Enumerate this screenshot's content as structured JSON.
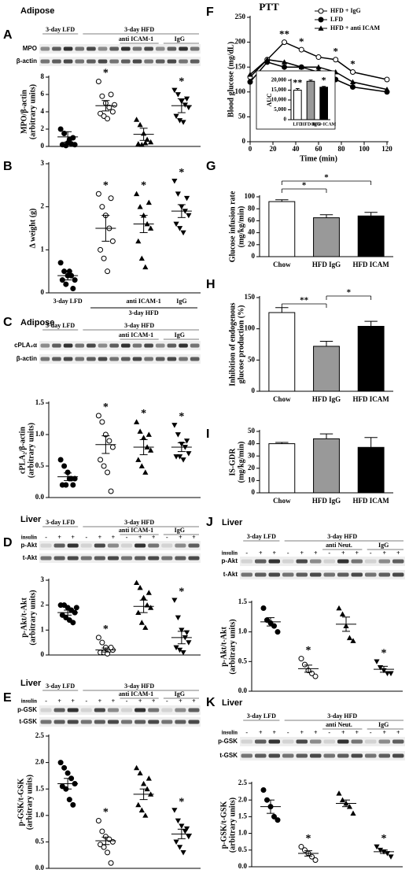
{
  "chart_data": [
    {
      "type": "dotplot",
      "panel_label": "A",
      "tissue": "Adipose",
      "color": "#000000",
      "blot": {
        "top_labels": [
          "3-day LFD",
          "3-day HFD"
        ],
        "sub_labels": [
          "anti ICAM-1",
          "IgG"
        ],
        "row_labels": [
          "MPO",
          "β-actin"
        ]
      },
      "ylabel": [
        "MPO/β-actin",
        "(arbitrary units)"
      ],
      "ylim": [
        0,
        8
      ],
      "yticks": [
        0,
        2,
        4,
        6,
        8
      ],
      "groups": [
        {
          "marker": "circle",
          "values": [
            2.0,
            1.5,
            0.4,
            0.3,
            0.2,
            0.2,
            0.1,
            0.8,
            1.0
          ],
          "mean": 1.1,
          "sem": 0.6
        },
        {
          "marker": "open-circle",
          "values": [
            7.5,
            5.8,
            5.0,
            4.5,
            4.0,
            3.8,
            3.5,
            3.2,
            6.0,
            4.8
          ],
          "mean": 4.7,
          "sem": 0.6,
          "annotation": "*"
        },
        {
          "marker": "triangle",
          "values": [
            3.1,
            2.5,
            1.5,
            0.8,
            0.5,
            0.3,
            0.2,
            0.4
          ],
          "mean": 1.4,
          "sem": 0.7
        },
        {
          "marker": "triangle-down",
          "values": [
            6.5,
            6.0,
            5.2,
            4.8,
            4.5,
            3.5,
            3.0,
            2.8,
            5.5
          ],
          "mean": 4.7,
          "sem": 0.8,
          "annotation": "*"
        }
      ]
    },
    {
      "type": "dotplot",
      "panel_label": "B",
      "color": "#000000",
      "ylabel": [
        "Δ weight (g)"
      ],
      "ylim": [
        0,
        3
      ],
      "yticks": [
        0,
        1,
        2,
        3
      ],
      "categories": [
        "3-day LFD",
        null,
        "anti ICAM-1",
        "IgG"
      ],
      "category_group": "3-day HFD",
      "groups": [
        {
          "marker": "circle",
          "values": [
            0.7,
            0.5,
            0.4,
            0.4,
            0.3,
            0.3,
            0.2,
            0.5,
            0.1
          ],
          "mean": 0.4,
          "sem": 0.1
        },
        {
          "marker": "open-circle",
          "values": [
            2.3,
            2.0,
            1.8,
            1.5,
            1.2,
            1.0,
            0.8,
            0.5,
            2.2
          ],
          "mean": 1.5,
          "sem": 0.3,
          "annotation": "*"
        },
        {
          "marker": "triangle",
          "values": [
            2.3,
            2.0,
            1.8,
            1.6,
            1.5,
            1.2,
            0.8,
            0.6,
            2.1
          ],
          "mean": 1.6,
          "sem": 0.2,
          "annotation": "*"
        },
        {
          "marker": "triangle-down",
          "values": [
            2.6,
            2.3,
            2.0,
            1.9,
            1.8,
            1.6,
            1.5,
            1.4,
            2.2
          ],
          "mean": 1.9,
          "sem": 0.15,
          "annotation": "*"
        }
      ]
    },
    {
      "type": "dotplot",
      "panel_label": "C",
      "tissue": "Adipose",
      "color": "#000000",
      "blot": {
        "top_labels": [
          "3-day LFD",
          "3-day HFD"
        ],
        "sub_labels": [
          "anti ICAM-1",
          "IgG"
        ],
        "row_labels": [
          "cPLA₂α",
          "β-actin"
        ]
      },
      "ylabel": [
        "cPLA₂/β-actin",
        "(arbitrary units)"
      ],
      "ylim": [
        0,
        1.5
      ],
      "yticks": [
        {
          "value": 0,
          "label": "0.0"
        },
        0.5,
        {
          "value": 1,
          "label": "1.0"
        },
        1.5
      ],
      "groups": [
        {
          "marker": "circle",
          "values": [
            0.6,
            0.5,
            0.4,
            0.3,
            0.3,
            0.2,
            0.2,
            0.3,
            0.2
          ],
          "mean": 0.33,
          "sem": 0.06
        },
        {
          "marker": "open-circle",
          "values": [
            1.3,
            1.2,
            1.0,
            0.9,
            0.8,
            0.6,
            0.5,
            0.4,
            0.1
          ],
          "mean": 0.84,
          "sem": 0.14,
          "annotation": "*"
        },
        {
          "marker": "triangle",
          "values": [
            1.2,
            1.05,
            0.95,
            0.8,
            0.75,
            0.6,
            0.5,
            0.4,
            1.0
          ],
          "mean": 0.8,
          "sem": 0.12,
          "annotation": "*"
        },
        {
          "marker": "triangle-down",
          "values": [
            1.15,
            1.0,
            0.85,
            0.8,
            0.7,
            0.65,
            0.65,
            0.6,
            0.9
          ],
          "mean": 0.8,
          "sem": 0.07,
          "annotation": "*"
        }
      ]
    },
    {
      "type": "dotplot",
      "panel_label": "D",
      "tissue": "Liver",
      "color": "#000000",
      "blot": {
        "top_labels": [
          "3-day LFD",
          "3-day HFD"
        ],
        "sub_labels": [
          "anti ICAM-1",
          "IgG"
        ],
        "row_labels": [
          "p-Akt",
          "t-Akt"
        ],
        "insulin_label": "insulin",
        "insulin": [
          "-",
          "+",
          "+",
          "-",
          "+",
          "+",
          "-",
          "+",
          "+",
          "-",
          "+",
          "+"
        ]
      },
      "ylabel": [
        "p-Akt/t-Akt",
        "(arbitrary units)"
      ],
      "ylim": [
        0,
        3
      ],
      "yticks": [
        0,
        1,
        2,
        3
      ],
      "groups": [
        {
          "marker": "circle",
          "values": [
            2.0,
            2.0,
            1.9,
            1.8,
            1.7,
            1.6,
            1.5,
            1.4,
            1.3,
            1.9
          ],
          "mean": 1.7,
          "sem": 0.1
        },
        {
          "marker": "open-circle",
          "values": [
            0.7,
            0.5,
            0.3,
            0.2,
            0.2,
            0.1,
            0.1,
            0.05,
            0.3
          ],
          "mean": 0.2,
          "sem": 0.08,
          "annotation": "*"
        },
        {
          "marker": "triangle",
          "values": [
            2.9,
            2.7,
            2.3,
            2.0,
            1.9,
            1.7,
            1.3,
            1.1,
            2.5
          ],
          "mean": 1.95,
          "sem": 0.25
        },
        {
          "marker": "triangle-down",
          "values": [
            2.2,
            1.5,
            1.0,
            0.7,
            0.5,
            0.3,
            0.2,
            0.1,
            0.9
          ],
          "mean": 0.7,
          "sem": 0.25,
          "annotation": "*"
        }
      ]
    },
    {
      "type": "dotplot",
      "panel_label": "E",
      "tissue": "Liver",
      "color": "#000000",
      "blot": {
        "top_labels": [
          "3-day LFD",
          "3-day HFD"
        ],
        "sub_labels": [
          "anti ICAM-1",
          "IgG"
        ],
        "row_labels": [
          "p-GSK",
          "t-GSK"
        ],
        "insulin_label": "insulin",
        "insulin": [
          "-",
          "+",
          "+",
          "-",
          "+",
          "+",
          "-",
          "+",
          "+",
          "-",
          "+",
          "+"
        ]
      },
      "ylabel": [
        "p-GSK/t-GSK",
        "(arbitrary units)"
      ],
      "ylim": [
        0,
        2.5
      ],
      "yticks": [
        {
          "value": 0,
          "label": "0.0"
        },
        0.5,
        {
          "value": 1,
          "label": "1.0"
        },
        1.5,
        {
          "value": 2,
          "label": "2.0"
        },
        2.5
      ],
      "groups": [
        {
          "marker": "circle",
          "values": [
            2.0,
            1.9,
            1.8,
            1.7,
            1.6,
            1.55,
            1.5,
            1.3,
            1.2
          ],
          "mean": 1.6,
          "sem": 0.1
        },
        {
          "marker": "open-circle",
          "values": [
            0.9,
            0.7,
            0.6,
            0.55,
            0.5,
            0.45,
            0.4,
            0.3,
            0.1
          ],
          "mean": 0.52,
          "sem": 0.07,
          "annotation": "*"
        },
        {
          "marker": "triangle",
          "values": [
            1.9,
            1.8,
            1.6,
            1.5,
            1.4,
            1.2,
            1.1,
            1.0,
            1.7
          ],
          "mean": 1.4,
          "sem": 0.1
        },
        {
          "marker": "triangle-down",
          "values": [
            1.1,
            0.9,
            0.8,
            0.7,
            0.6,
            0.5,
            0.4,
            0.3,
            0.75
          ],
          "mean": 0.65,
          "sem": 0.09,
          "annotation": "*"
        }
      ]
    },
    {
      "type": "line",
      "panel_label": "F",
      "title": "PTT",
      "xlabel": "Time (min)",
      "ylabel": [
        "Blood glucose (mg/dL)"
      ],
      "x": [
        0,
        15,
        30,
        45,
        60,
        75,
        90,
        120
      ],
      "xlim": [
        0,
        120
      ],
      "xticks": [
        0,
        20,
        40,
        60,
        80,
        100,
        120
      ],
      "ylim": [
        0,
        250
      ],
      "yticks": [
        0,
        50,
        100,
        150,
        200,
        250
      ],
      "legend": "upper right",
      "series": [
        {
          "name": "HFD + IgG",
          "color": "#000000",
          "marker": "open-circle",
          "values": [
            130,
            165,
            200,
            185,
            170,
            165,
            140,
            125
          ]
        },
        {
          "name": "LFD",
          "color": "#000000",
          "marker": "circle",
          "values": [
            120,
            160,
            150,
            150,
            140,
            125,
            110,
            100
          ]
        },
        {
          "name": "HFD + anti ICAM",
          "color": "#000000",
          "marker": "triangle",
          "values": [
            135,
            165,
            160,
            150,
            150,
            140,
            120,
            105
          ]
        }
      ],
      "annotations": [
        null,
        null,
        "**",
        "*",
        null,
        "*",
        "*",
        null
      ]
    },
    {
      "type": "bar",
      "ylabel": [
        "AUC"
      ],
      "categories": [
        "LFD",
        "HFD-IgG",
        "HFD-ICAM"
      ],
      "values": [
        15000,
        19500,
        16500
      ],
      "errors": [
        800,
        600,
        400
      ],
      "colors": [
        "#ffffff",
        "#999999",
        "#000000"
      ],
      "ylim": [
        0,
        20000
      ],
      "yticks": [
        0,
        {
          "value": 5000,
          "label": "5,000"
        },
        {
          "value": 10000,
          "label": "10,000"
        },
        {
          "value": 15000,
          "label": "15,000"
        },
        {
          "value": 20000,
          "label": "20,000"
        }
      ],
      "annotations": [
        "**",
        null,
        "*"
      ]
    },
    {
      "type": "bar",
      "panel_label": "G",
      "ylabel": [
        "Glucose infusion rate",
        "(mg/kg/min)"
      ],
      "categories": [
        "Chow",
        "HFD IgG",
        "HFD ICAM"
      ],
      "values": [
        92,
        65,
        68
      ],
      "errors": [
        3,
        5,
        6
      ],
      "colors": [
        "#ffffff",
        "#999999",
        "#000000"
      ],
      "ylim": [
        0,
        100
      ],
      "yticks": [
        0,
        20,
        40,
        60,
        80,
        100
      ],
      "brackets": [
        "*",
        "*"
      ]
    },
    {
      "type": "bar",
      "panel_label": "H",
      "ylabel": [
        "Inhibition of endogenous",
        "glucose production (%)"
      ],
      "categories": [
        "Chow",
        "HFD IgG",
        "HFD ICAM"
      ],
      "values": [
        126,
        72,
        104
      ],
      "errors": [
        8,
        8,
        8
      ],
      "colors": [
        "#ffffff",
        "#999999",
        "#000000"
      ],
      "ylim": [
        0,
        150
      ],
      "yticks": [
        0,
        50,
        100,
        150
      ],
      "brackets": [
        "**",
        "*"
      ]
    },
    {
      "type": "bar",
      "panel_label": "I",
      "ylabel": [
        "IS-GDR",
        "(mg/kg/min)"
      ],
      "categories": [
        "Chow",
        "HFD IgG",
        "HFD ICAM"
      ],
      "values": [
        40,
        44,
        37
      ],
      "errors": [
        1,
        4,
        8
      ],
      "colors": [
        "#ffffff",
        "#999999",
        "#000000"
      ],
      "ylim": [
        0,
        50
      ],
      "yticks": [
        0,
        10,
        20,
        30,
        40,
        50
      ]
    },
    {
      "type": "dotplot",
      "panel_label": "J",
      "tissue": "Liver",
      "color": "#000000",
      "blot": {
        "top_labels": [
          "3-day LFD",
          "3-day HFD"
        ],
        "sub_labels": [
          "anti Neut.",
          "IgG"
        ],
        "row_labels": [
          "p-Akt",
          "t-Akt"
        ],
        "insulin_label": "insulin",
        "insulin": [
          "-",
          "+",
          "+",
          "-",
          "+",
          "+",
          "-",
          "+",
          "+",
          "-",
          "+",
          "+"
        ]
      },
      "ylabel": [
        "p-Akt/t-Akt",
        "(arbitrary units)"
      ],
      "ylim": [
        0,
        1.5
      ],
      "yticks": [
        {
          "value": 0,
          "label": "0.0"
        },
        0.5,
        {
          "value": 1,
          "label": "1.0"
        },
        1.5
      ],
      "groups": [
        {
          "marker": "circle",
          "values": [
            1.4,
            1.2,
            1.15,
            1.1,
            1.0
          ],
          "mean": 1.17,
          "sem": 0.07
        },
        {
          "marker": "open-circle",
          "values": [
            0.55,
            0.45,
            0.35,
            0.3,
            0.25
          ],
          "mean": 0.38,
          "sem": 0.06,
          "annotation": "*"
        },
        {
          "marker": "triangle",
          "values": [
            1.4,
            1.3,
            1.1,
            0.9,
            0.85
          ],
          "mean": 1.13,
          "sem": 0.12
        },
        {
          "marker": "triangle-down",
          "values": [
            0.5,
            0.4,
            0.35,
            0.3,
            0.3
          ],
          "mean": 0.37,
          "sem": 0.05,
          "annotation": "*"
        }
      ]
    },
    {
      "type": "dotplot",
      "panel_label": "K",
      "tissue": "Liver",
      "color": "#000000",
      "blot": {
        "top_labels": [
          "3-day LFD",
          "3-day HFD"
        ],
        "sub_labels": [
          "anti Neut.",
          "IgG"
        ],
        "row_labels": [
          "p-GSK",
          "t-GSK"
        ],
        "insulin_label": "insulin",
        "insulin": [
          "-",
          "+",
          "+",
          "-",
          "+",
          "+",
          "-",
          "+",
          "+",
          "-",
          "+",
          "+"
        ]
      },
      "ylabel": [
        "p-GSK/t-GSK",
        "(arbitrary units)"
      ],
      "ylim": [
        0,
        2.5
      ],
      "yticks": [
        {
          "value": 0,
          "label": "0.0"
        },
        0.5,
        {
          "value": 1,
          "label": "1.0"
        },
        1.5,
        {
          "value": 2,
          "label": "2.0"
        },
        2.5
      ],
      "groups": [
        {
          "marker": "circle",
          "values": [
            2.3,
            2.0,
            1.8,
            1.5,
            1.4
          ],
          "mean": 1.8,
          "sem": 0.2
        },
        {
          "marker": "open-circle",
          "values": [
            0.6,
            0.5,
            0.4,
            0.3,
            0.2
          ],
          "mean": 0.4,
          "sem": 0.08,
          "annotation": "*"
        },
        {
          "marker": "triangle",
          "values": [
            2.2,
            2.0,
            1.9,
            1.8,
            1.6
          ],
          "mean": 1.9,
          "sem": 0.1
        },
        {
          "marker": "triangle-down",
          "values": [
            0.6,
            0.5,
            0.45,
            0.4,
            0.3
          ],
          "mean": 0.45,
          "sem": 0.05,
          "annotation": "*"
        }
      ]
    }
  ]
}
